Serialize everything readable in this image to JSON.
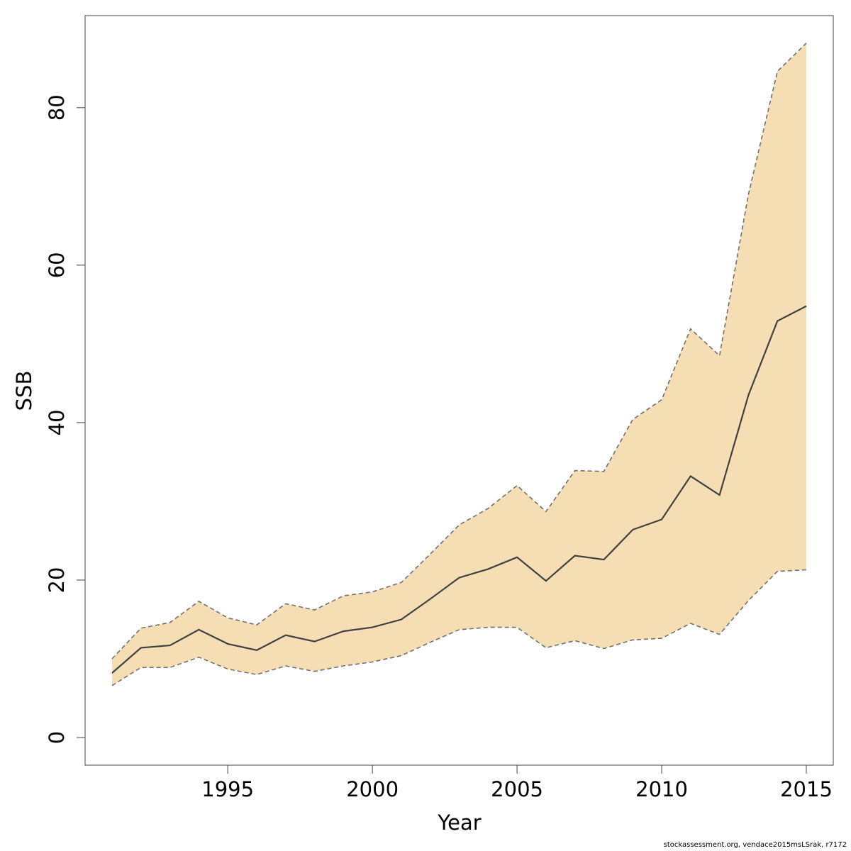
{
  "chart_data": {
    "type": "area",
    "xlabel": "Year",
    "ylabel": "SSB",
    "xlim": [
      1991,
      2015
    ],
    "ylim": [
      0,
      88
    ],
    "x_ticks": [
      1995,
      2000,
      2005,
      2010,
      2015
    ],
    "y_ticks": [
      0,
      20,
      40,
      60,
      80
    ],
    "grid": false,
    "colors": {
      "band": "#f5deb3",
      "line": "#404040",
      "bounds": "#707070"
    },
    "x": [
      1991,
      1992,
      1993,
      1994,
      1995,
      1996,
      1997,
      1998,
      1999,
      2000,
      2001,
      2002,
      2003,
      2004,
      2005,
      2006,
      2007,
      2008,
      2009,
      2010,
      2011,
      2012,
      2013,
      2014,
      2015
    ],
    "series": [
      {
        "values": [
          8.2,
          11.4,
          11.7,
          13.7,
          11.9,
          11.1,
          13.0,
          12.2,
          13.5,
          14.0,
          15.0,
          17.6,
          20.3,
          21.4,
          22.9,
          19.9,
          23.1,
          22.6,
          26.4,
          27.7,
          33.2,
          30.8,
          43.5,
          52.9,
          54.8
        ]
      },
      {
        "values": [
          10.0,
          13.9,
          14.6,
          17.3,
          15.2,
          14.3,
          17.0,
          16.2,
          18.0,
          18.5,
          19.7,
          23.3,
          27.0,
          29.1,
          32.0,
          28.7,
          33.9,
          33.8,
          40.4,
          42.9,
          51.9,
          48.5,
          69.0,
          84.6,
          88.2
        ]
      },
      {
        "values": [
          6.6,
          8.9,
          8.9,
          10.2,
          8.7,
          8.0,
          9.1,
          8.4,
          9.1,
          9.6,
          10.4,
          12.1,
          13.7,
          14.0,
          14.0,
          11.4,
          12.3,
          11.3,
          12.4,
          12.6,
          14.5,
          13.1,
          17.4,
          21.1,
          21.3
        ]
      }
    ]
  },
  "footer": "stockassessment.org, vendace2015msLSrak, r7172"
}
